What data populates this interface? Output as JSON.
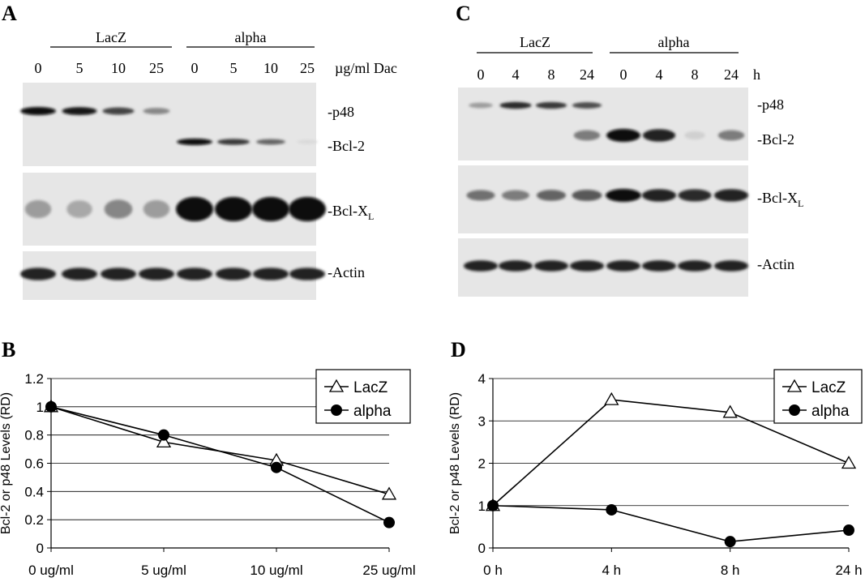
{
  "panels": {
    "A": {
      "letter": "A",
      "groups": [
        "LacZ",
        "alpha"
      ],
      "lanes": [
        "0",
        "5",
        "10",
        "25",
        "0",
        "5",
        "10",
        "25"
      ],
      "unit": "µg/ml Dac",
      "bands": {
        "p48": "-p48",
        "bcl2": "-Bcl-2",
        "bclxl_main": "-Bcl-X",
        "bclxl_sub": "L",
        "actin": "-Actin"
      },
      "intensity": {
        "p48": [
          1.0,
          0.95,
          0.75,
          0.45,
          0,
          0,
          0,
          0
        ],
        "bcl2": [
          0,
          0,
          0,
          0,
          1.0,
          0.8,
          0.6,
          0.08
        ],
        "bclxl": [
          0.35,
          0.3,
          0.45,
          0.35,
          1.0,
          1.0,
          1.0,
          1.0
        ],
        "actin": [
          0.9,
          0.9,
          0.9,
          0.9,
          0.9,
          0.9,
          0.9,
          0.9
        ]
      }
    },
    "C": {
      "letter": "C",
      "groups": [
        "LacZ",
        "alpha"
      ],
      "lanes": [
        "0",
        "4",
        "8",
        "24",
        "0",
        "4",
        "8",
        "24"
      ],
      "unit": "h",
      "bands": {
        "p48": "-p48",
        "bcl2": "-Bcl-2",
        "bclxl_main": "-Bcl-X",
        "bclxl_sub": "L",
        "actin": "-Actin"
      },
      "intensity": {
        "p48": [
          0.35,
          0.85,
          0.8,
          0.7,
          0,
          0,
          0,
          0
        ],
        "bcl2": [
          0,
          0,
          0,
          0.5,
          1.0,
          0.9,
          0.12,
          0.5
        ],
        "bclxl": [
          0.55,
          0.5,
          0.6,
          0.65,
          1.0,
          0.9,
          0.85,
          0.9
        ],
        "actin": [
          0.9,
          0.9,
          0.9,
          0.9,
          0.9,
          0.9,
          0.9,
          0.9
        ]
      }
    },
    "B": {
      "letter": "B"
    },
    "D": {
      "letter": "D"
    }
  },
  "chart_data": [
    {
      "panel": "B",
      "type": "line",
      "categories": [
        "0 ug/ml",
        "5 ug/ml",
        "10 ug/ml",
        "25 ug/ml"
      ],
      "series": [
        {
          "name": "LacZ",
          "marker": "open-triangle",
          "values": [
            1.0,
            0.75,
            0.62,
            0.38
          ]
        },
        {
          "name": "alpha",
          "marker": "filled-circle",
          "values": [
            1.0,
            0.8,
            0.57,
            0.18
          ]
        }
      ],
      "ylabel": "Bcl-2 or p48 Levels (RD)",
      "ylim": [
        0,
        1.2
      ],
      "yticks": [
        "0",
        "0.2",
        "0.4",
        "0.6",
        "0.8",
        "1",
        "1.2"
      ],
      "ytick_values": [
        0,
        0.2,
        0.4,
        0.6,
        0.8,
        1.0,
        1.2
      ],
      "grid": true,
      "legend": "top-right"
    },
    {
      "panel": "D",
      "type": "line",
      "categories": [
        "0 h",
        "4 h",
        "8 h",
        "24 h"
      ],
      "series": [
        {
          "name": "LacZ",
          "marker": "open-triangle",
          "values": [
            1.0,
            3.5,
            3.2,
            2.0
          ]
        },
        {
          "name": "alpha",
          "marker": "filled-circle",
          "values": [
            1.0,
            0.9,
            0.15,
            0.42
          ]
        }
      ],
      "ylabel": "Bcl-2 or p48 Levels (RD)",
      "ylim": [
        0,
        4
      ],
      "yticks": [
        "0",
        "1",
        "2",
        "3",
        "4"
      ],
      "ytick_values": [
        0,
        1,
        2,
        3,
        4
      ],
      "grid": true,
      "legend": "top-right"
    }
  ]
}
